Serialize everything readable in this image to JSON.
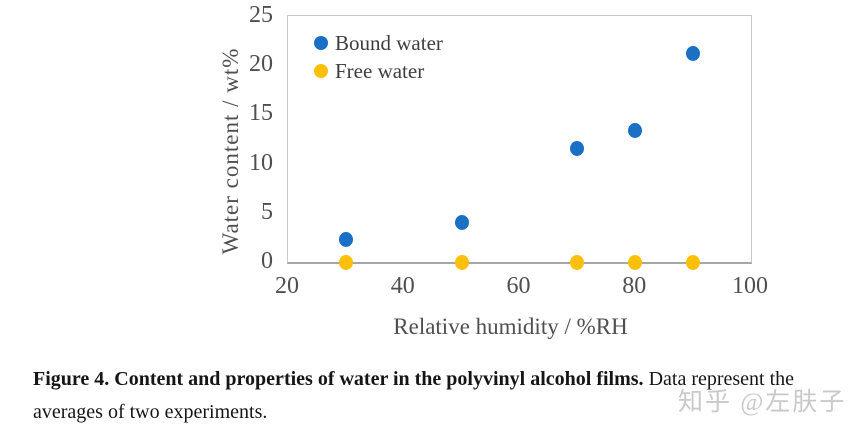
{
  "watermark": "知乎 @左肤子",
  "caption": {
    "line1_bold": "Figure 4. Content and properties of water in the polyvinyl alcohol films.",
    "line1_regular": " Data represent the",
    "line2": "averages of two experiments."
  },
  "chart_data": {
    "type": "scatter",
    "title": "",
    "xlabel": "Relative humidity / %RH",
    "ylabel": "Water content / wt%",
    "xlim": [
      20,
      100
    ],
    "ylim": [
      0,
      25
    ],
    "x_ticks": [
      20,
      40,
      60,
      80,
      100
    ],
    "y_ticks": [
      0,
      5,
      10,
      15,
      20,
      25
    ],
    "grid": false,
    "legend_position": "top-left-inside",
    "x": [
      30,
      50,
      70,
      80,
      90
    ],
    "series": [
      {
        "name": "Bound water",
        "color": "#1a70c4",
        "values": [
          2.3,
          4.0,
          11.5,
          13.4,
          21.2
        ]
      },
      {
        "name": "Free water",
        "color": "#fdc008",
        "values": [
          0,
          0,
          0,
          0,
          0
        ]
      }
    ]
  }
}
